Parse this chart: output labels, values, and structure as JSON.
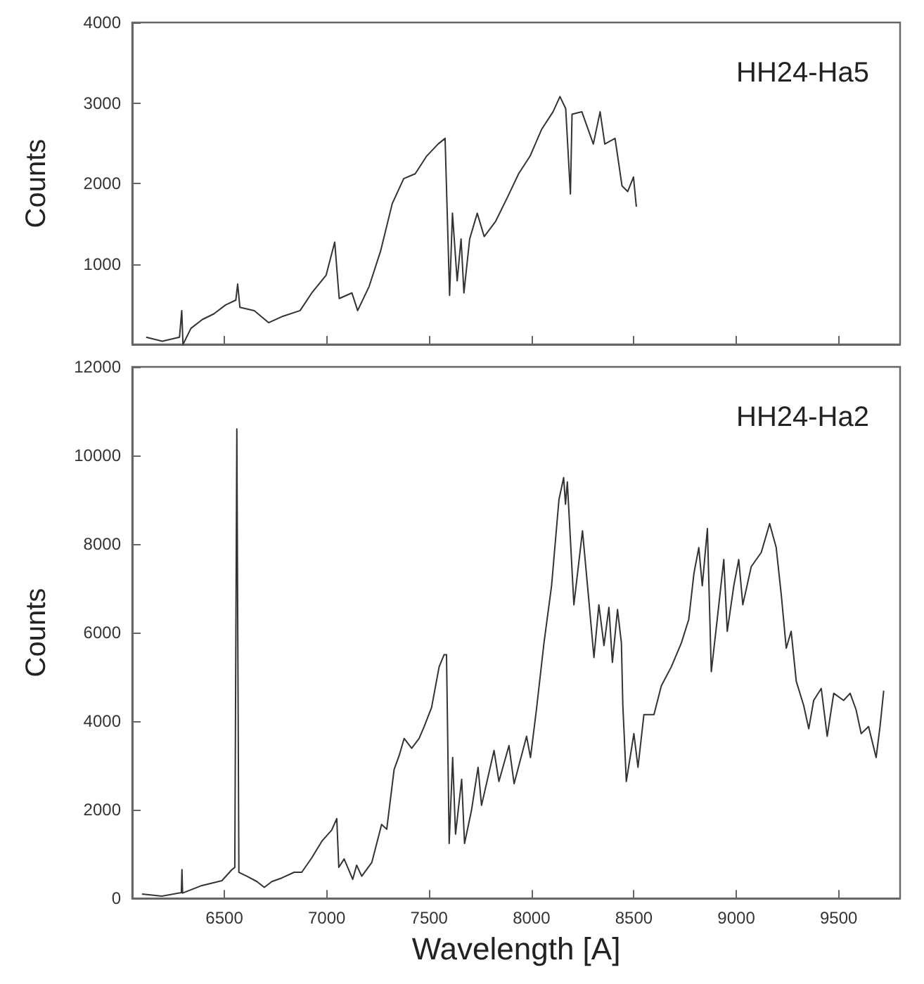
{
  "chart_data": [
    {
      "type": "line",
      "ylabel": "Counts",
      "annotations": [
        "HH24-Ha5"
      ],
      "xlim": [
        6050,
        9800
      ],
      "xticks": [
        {
          "value": 6500,
          "label": null
        },
        {
          "value": 7000,
          "label": null
        },
        {
          "value": 7500,
          "label": null
        },
        {
          "value": 8000,
          "label": null
        },
        {
          "value": 8500,
          "label": null
        },
        {
          "value": 9000,
          "label": null
        },
        {
          "value": 9500,
          "label": null
        }
      ],
      "ylim": [
        0,
        4000
      ],
      "yticks": [
        1000,
        2000,
        3000,
        4000
      ],
      "tick_labels": "y",
      "series": [
        {
          "color": "#333333",
          "x": [
            6118,
            6197,
            6281,
            6292,
            6298,
            6337,
            6393,
            6449,
            6506,
            6556,
            6565,
            6576,
            6646,
            6716,
            6786,
            6870,
            6927,
            6997,
            7039,
            7061,
            7123,
            7151,
            7207,
            7263,
            7320,
            7376,
            7432,
            7488,
            7544,
            7578,
            7600,
            7614,
            7637,
            7656,
            7670,
            7698,
            7735,
            7769,
            7825,
            7881,
            7937,
            7993,
            8049,
            8105,
            8139,
            8167,
            8190,
            8198,
            8246,
            8302,
            8335,
            8358,
            8408,
            8442,
            8470,
            8498,
            8512
          ],
          "values": [
            90,
            40,
            90,
            420,
            0,
            200,
            310,
            380,
            490,
            550,
            750,
            460,
            420,
            270,
            350,
            420,
            640,
            860,
            1270,
            570,
            640,
            420,
            720,
            1160,
            1750,
            2060,
            2120,
            2340,
            2490,
            2560,
            610,
            1630,
            790,
            1310,
            640,
            1310,
            1630,
            1340,
            1530,
            1820,
            2120,
            2340,
            2670,
            2890,
            3080,
            2930,
            1870,
            2860,
            2890,
            2490,
            2890,
            2490,
            2560,
            1970,
            1900,
            2080,
            1710
          ]
        }
      ]
    },
    {
      "type": "line",
      "xlabel": "Wavelength [A]",
      "ylabel": "Counts",
      "annotations": [
        "HH24-Ha2"
      ],
      "xlim": [
        6050,
        9800
      ],
      "xticks": [
        6500,
        7000,
        7500,
        8000,
        8500,
        9000,
        9500
      ],
      "ylim": [
        0,
        12000
      ],
      "yticks": [
        0,
        2000,
        4000,
        6000,
        8000,
        10000,
        12000
      ],
      "series": [
        {
          "color": "#333333",
          "x": [
            6098,
            6195,
            6290,
            6293,
            6296,
            6390,
            6488,
            6537,
            6551,
            6561,
            6571,
            6610,
            6659,
            6695,
            6732,
            6780,
            6841,
            6878,
            6927,
            6976,
            7024,
            7049,
            7059,
            7085,
            7127,
            7146,
            7171,
            7220,
            7268,
            7293,
            7329,
            7354,
            7378,
            7415,
            7451,
            7476,
            7512,
            7549,
            7573,
            7585,
            7598,
            7615,
            7629,
            7659,
            7673,
            7707,
            7739,
            7756,
            7817,
            7841,
            7890,
            7915,
            7976,
            7995,
            8024,
            8061,
            8098,
            8134,
            8157,
            8166,
            8175,
            8207,
            8249,
            8280,
            8305,
            8329,
            8354,
            8378,
            8395,
            8420,
            8439,
            8446,
            8463,
            8500,
            8520,
            8549,
            8598,
            8634,
            8683,
            8732,
            8768,
            8793,
            8817,
            8834,
            8859,
            8878,
            8907,
            8939,
            8956,
            8988,
            9012,
            9032,
            9073,
            9122,
            9163,
            9195,
            9220,
            9244,
            9268,
            9293,
            9329,
            9354,
            9378,
            9415,
            9444,
            9476,
            9524,
            9556,
            9585,
            9610,
            9646,
            9683,
            9702,
            9720
          ],
          "values": [
            100,
            50,
            130,
            650,
            120,
            290,
            400,
            650,
            700,
            10600,
            590,
            500,
            380,
            250,
            380,
            460,
            590,
            590,
            915,
            1290,
            1540,
            1800,
            700,
            890,
            430,
            750,
            500,
            810,
            1670,
            1560,
            2910,
            3230,
            3610,
            3390,
            3610,
            3880,
            4310,
            5230,
            5500,
            5500,
            1240,
            3180,
            1450,
            2690,
            1240,
            1990,
            2960,
            2100,
            3340,
            2640,
            3450,
            2590,
            3660,
            3180,
            4260,
            5770,
            7060,
            9000,
            9500,
            8900,
            9400,
            6630,
            8300,
            6730,
            5440,
            6630,
            5710,
            6570,
            5330,
            6520,
            5770,
            4360,
            2640,
            3720,
            2960,
            4150,
            4150,
            4800,
            5230,
            5770,
            6300,
            7330,
            7920,
            7060,
            8350,
            5120,
            6300,
            7650,
            6030,
            7060,
            7650,
            6630,
            7490,
            7810,
            8460,
            7920,
            6840,
            5650,
            6030,
            4900,
            4360,
            3830,
            4470,
            4740,
            3660,
            4630,
            4470,
            4630,
            4260,
            3720,
            3880,
            3180,
            3880,
            4690
          ]
        }
      ]
    }
  ]
}
